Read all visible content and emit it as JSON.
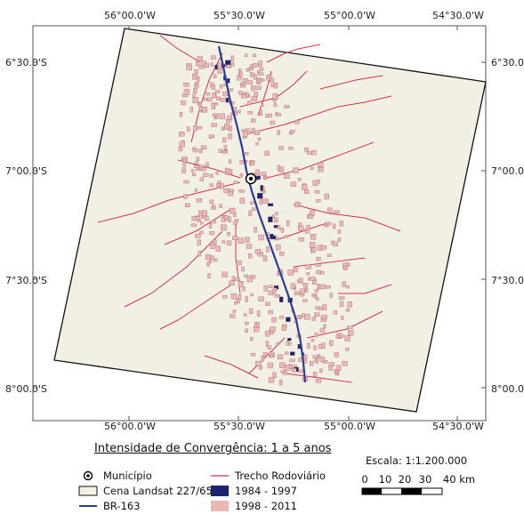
{
  "map": {
    "lon_labels": [
      "56°00.0'W",
      "55°30.0'W",
      "55°00.0'W",
      "54°30.0'W"
    ],
    "lat_labels": [
      "6°30.0'S",
      "7°00.0'S",
      "7°30.0'S",
      "8°00.0'S"
    ]
  },
  "legend": {
    "title": "Intensidade de Convergência: 1 a 5 anos",
    "items": [
      {
        "label": "Município",
        "symbol": "city-point"
      },
      {
        "label": "Trecho Rodoviário",
        "symbol": "thin-red-line"
      },
      {
        "label": "Cena Landsat 227/65",
        "symbol": "beige-box"
      },
      {
        "label": "1984 - 1997",
        "symbol": "navy-box"
      },
      {
        "label": "BR-163",
        "symbol": "navy-line"
      },
      {
        "label": "1998 - 2011",
        "symbol": "pink-box"
      }
    ]
  },
  "scale": {
    "label": "Escala: 1:1.200.000",
    "ticks": [
      "0",
      "10",
      "20",
      "30",
      "40 km"
    ]
  },
  "colors": {
    "scene_fill": "#f2f0e4",
    "road": "#d8324a",
    "br163": "#2c3a9a",
    "period_1984_1997": "#1f2470",
    "period_1998_2011": "#eab6b6"
  }
}
